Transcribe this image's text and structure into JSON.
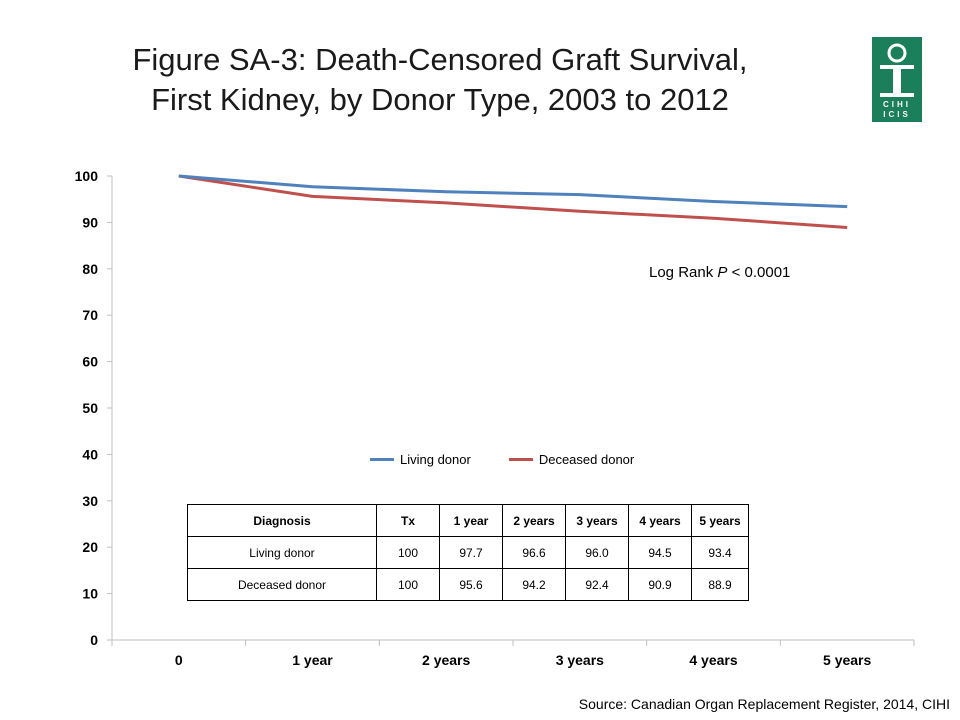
{
  "title": {
    "line1": "Figure SA-3: Death-Censored Graft Survival,",
    "line2": "First Kidney, by Donor Type, 2003 to 2012"
  },
  "logo": {
    "text_top": "CIHI",
    "text_bottom": "ICIS",
    "color": "#1a7f5a"
  },
  "annotation": {
    "prefix": "Log Rank ",
    "italic": "P",
    "suffix": " < 0.0001"
  },
  "table": {
    "headers": [
      "Diagnosis",
      "Tx",
      "1 year",
      "2 years",
      "3 years",
      "4 years",
      "5 years"
    ],
    "rows": [
      [
        "Living donor",
        "100",
        "97.7",
        "96.6",
        "96.0",
        "94.5",
        "93.4"
      ],
      [
        "Deceased donor",
        "100",
        "95.6",
        "94.2",
        "92.4",
        "90.9",
        "88.9"
      ]
    ]
  },
  "source": "Source: Canadian Organ Replacement Register, 2014, CIHI",
  "chart_data": {
    "type": "line",
    "categories": [
      "0",
      "1 year",
      "2 years",
      "3 years",
      "4 years",
      "5 years"
    ],
    "series": [
      {
        "name": "Living donor",
        "color": "#4f81bd",
        "values": [
          100,
          97.7,
          96.6,
          96.0,
          94.5,
          93.4
        ]
      },
      {
        "name": "Deceased donor",
        "color": "#c0504d",
        "values": [
          100,
          95.6,
          94.2,
          92.4,
          90.9,
          88.9
        ]
      }
    ],
    "yticks": [
      0,
      10,
      20,
      30,
      40,
      50,
      60,
      70,
      80,
      90,
      100
    ],
    "ylim": [
      0,
      100
    ],
    "title": "",
    "xlabel": "",
    "ylabel": "",
    "grid": false,
    "legend": "inside-center"
  }
}
